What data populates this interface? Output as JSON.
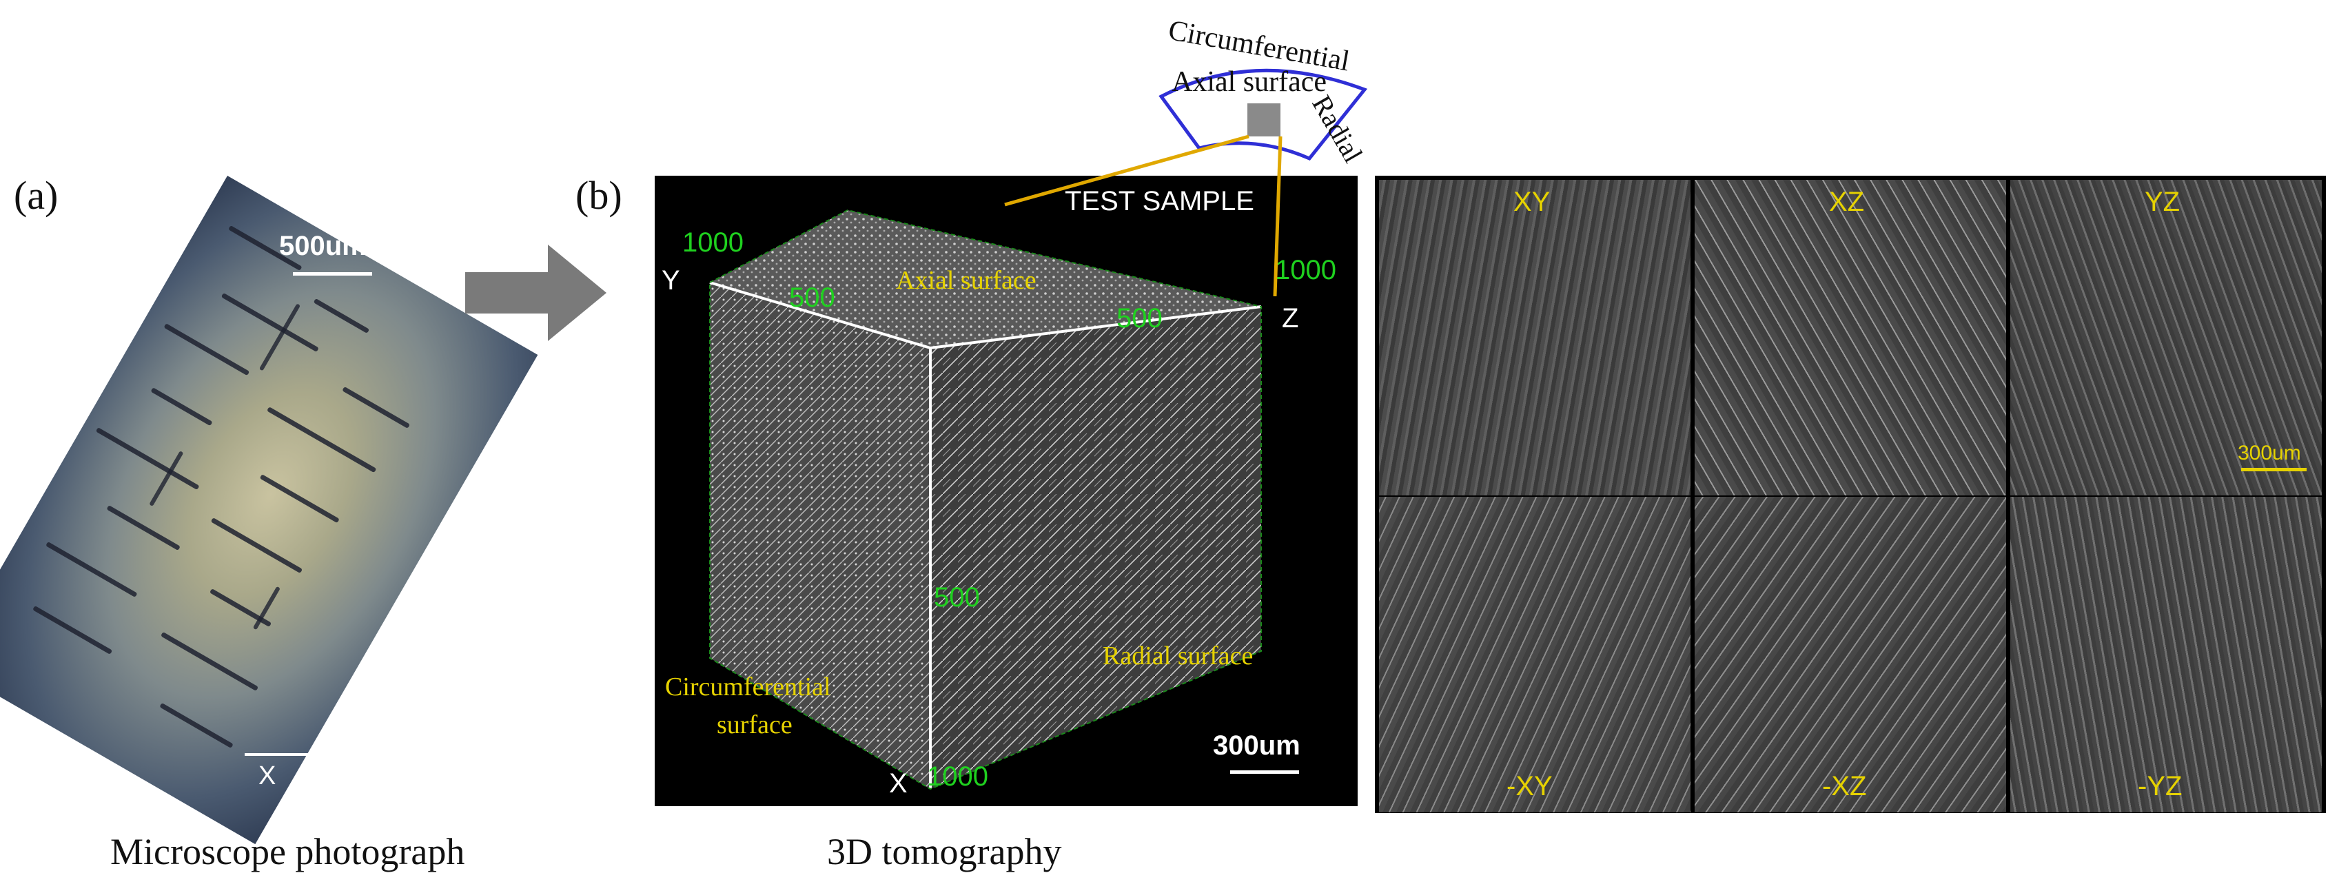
{
  "panel_a": {
    "label": "(a)",
    "scale_bar": "500um",
    "axis_label": "X",
    "caption": "Microscope photograph"
  },
  "arrow": {
    "color": "#7a7a7a"
  },
  "panel_b": {
    "label": "(b)",
    "sample_title": "TEST SAMPLE",
    "axis_y": "Y",
    "axis_z": "Z",
    "axis_x": "X",
    "tick_1000_top": "1000",
    "tick_1000_right": "1000",
    "tick_1000_bottom": "1000",
    "tick_500_left": "500",
    "tick_500_right": "500",
    "tick_500_front": "500",
    "axial_surface": "Axial surface",
    "radial_surface": "Radial surface",
    "circumferential_surface_line1": "Circumferential",
    "circumferential_surface_line2": "surface",
    "scale_bar": "300um",
    "caption": "3D tomography"
  },
  "inset": {
    "circumferential": "Circumferential",
    "axial": "Axial surface",
    "radial": "Radial",
    "outline_color": "#2f2fd6",
    "link_color": "#e0a800"
  },
  "slices": {
    "panels": [
      {
        "label": "XY"
      },
      {
        "label": "XZ"
      },
      {
        "label": "YZ"
      },
      {
        "label": "-XY"
      },
      {
        "label": "-XZ"
      },
      {
        "label": "-YZ"
      }
    ],
    "scale_bar": "300um"
  }
}
